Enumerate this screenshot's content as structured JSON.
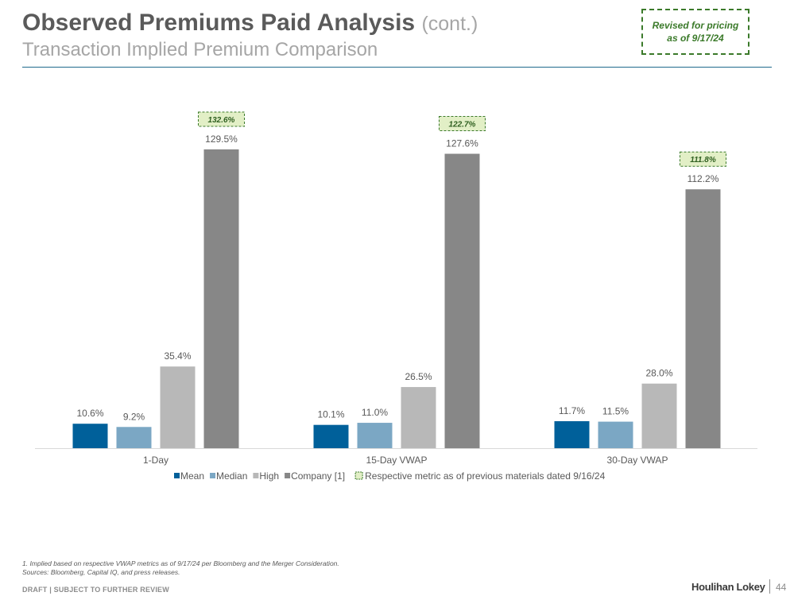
{
  "header": {
    "title": "Observed Premiums Paid Analysis",
    "title_suffix": "(cont.)",
    "subtitle": "Transaction Implied Premium Comparison",
    "revised_note": "Revised for pricing as of 9/17/24"
  },
  "chart_data": {
    "type": "bar",
    "categories": [
      "1-Day",
      "15-Day VWAP",
      "30-Day VWAP"
    ],
    "series": [
      {
        "name": "Mean",
        "color": "#00609a",
        "values": [
          10.6,
          10.1,
          11.7
        ],
        "labels": [
          "10.6%",
          "10.1%",
          "11.7%"
        ]
      },
      {
        "name": "Median",
        "color": "#7ba7c4",
        "values": [
          9.2,
          11.0,
          11.5
        ],
        "labels": [
          "9.2%",
          "11.0%",
          "11.5%"
        ]
      },
      {
        "name": "High",
        "color": "#b8b8b8",
        "values": [
          35.4,
          26.5,
          28.0
        ],
        "labels": [
          "35.4%",
          "26.5%",
          "28.0%"
        ]
      },
      {
        "name": "Company [1]",
        "color": "#878787",
        "values": [
          129.5,
          127.6,
          112.2
        ],
        "labels": [
          "129.5%",
          "127.6%",
          "112.2%"
        ]
      }
    ],
    "previous_metric": {
      "legend_label": "Respective metric as of previous materials dated 9/16/24",
      "values": [
        132.6,
        122.7,
        111.8
      ],
      "labels": [
        "132.6%",
        "122.7%",
        "111.8%"
      ],
      "fill": "#e2efc6",
      "border": "#3b7a2a"
    },
    "ylim": [
      0,
      145
    ],
    "grid": false,
    "legend_position": "bottom-center",
    "xlabel": "",
    "ylabel": ""
  },
  "footer": {
    "footnote_1": "1. Implied based on respective VWAP metrics as of 9/17/24 per Bloomberg and the Merger Consideration.",
    "footnote_2": "Sources: Bloomberg, Capital IQ, and press releases.",
    "draft": "DRAFT | SUBJECT TO FURTHER REVIEW",
    "brand": "Houlihan Lokey",
    "page_number": "44"
  }
}
